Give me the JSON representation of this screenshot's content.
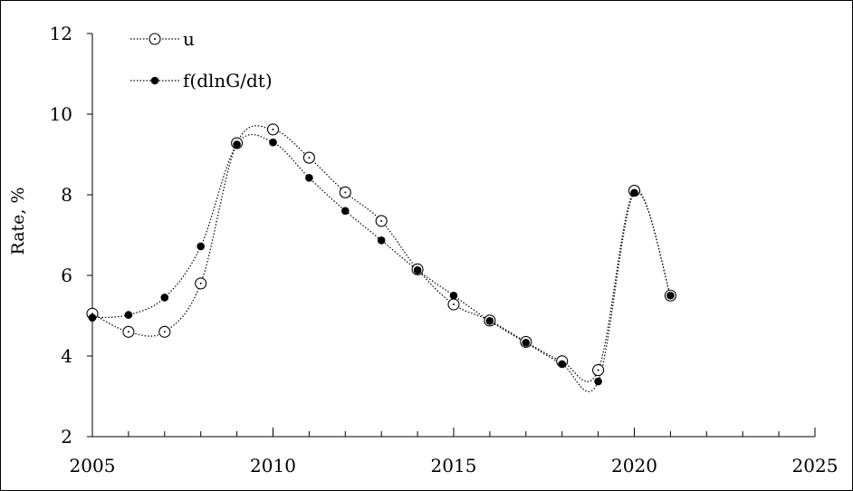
{
  "chart_data": {
    "type": "line",
    "title": "",
    "xlabel": "",
    "ylabel": "Rate, %",
    "xlim": [
      2005,
      2025
    ],
    "ylim": [
      2,
      12
    ],
    "x_ticks": [
      2005,
      2010,
      2015,
      2020,
      2025
    ],
    "x_tick_labels": [
      "2005",
      "2010",
      "2015",
      "2020",
      "2025"
    ],
    "y_ticks": [
      2,
      4,
      6,
      8,
      10,
      12
    ],
    "y_tick_labels": [
      "2",
      "4",
      "6",
      "8",
      "10",
      "12"
    ],
    "x_minor_step": 1,
    "grid": false,
    "legend": "top-left",
    "series": [
      {
        "name": "u",
        "marker": "open-circle-with-dot",
        "line_style": "dotted",
        "color": "#000000",
        "x": [
          2005,
          2006,
          2007,
          2008,
          2009,
          2010,
          2011,
          2012,
          2013,
          2014,
          2015,
          2016,
          2017,
          2018,
          2019,
          2020,
          2021
        ],
        "y": [
          5.05,
          4.6,
          4.6,
          5.8,
          9.28,
          9.62,
          8.92,
          8.06,
          7.35,
          6.15,
          5.28,
          4.88,
          4.35,
          3.87,
          3.65,
          8.1,
          5.5
        ]
      },
      {
        "name": "f(dlnG/dt)",
        "marker": "filled-circle",
        "line_style": "dotted",
        "color": "#000000",
        "x": [
          2005,
          2006,
          2007,
          2008,
          2009,
          2010,
          2011,
          2012,
          2013,
          2014,
          2015,
          2016,
          2017,
          2018,
          2019,
          2020,
          2021
        ],
        "y": [
          4.95,
          5.02,
          5.45,
          6.72,
          9.25,
          9.3,
          8.42,
          7.6,
          6.87,
          6.13,
          5.5,
          4.87,
          4.33,
          3.8,
          3.37,
          8.05,
          5.5
        ]
      }
    ]
  }
}
